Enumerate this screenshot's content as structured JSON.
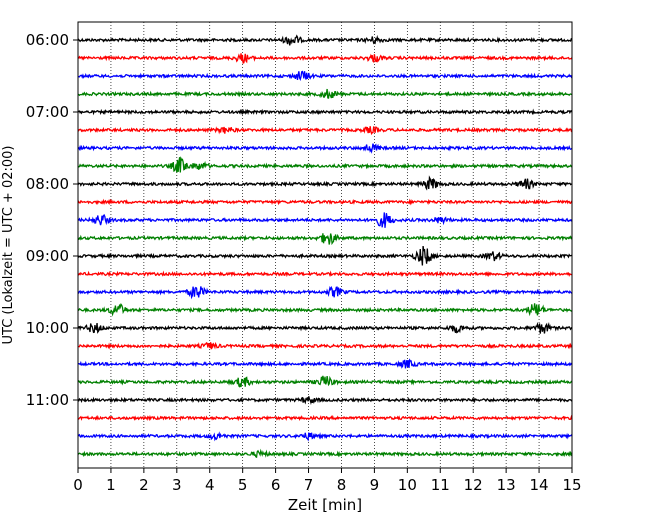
{
  "chart_data": {
    "type": "line",
    "title": "",
    "xlabel": "Zeit  [min]",
    "ylabel": "UTC (Lokalzeit = UTC + 02:00)",
    "xlim": [
      0,
      15
    ],
    "xticks": [
      "0",
      "1",
      "2",
      "3",
      "4",
      "5",
      "6",
      "7",
      "8",
      "9",
      "10",
      "11",
      "12",
      "13",
      "14",
      "15"
    ],
    "yticks": [
      "06:00",
      "07:00",
      "08:00",
      "09:00",
      "10:00",
      "11:00"
    ],
    "trace_start": "06:00",
    "trace_interval_min": 15,
    "grid": {
      "x": true,
      "style": "dotted"
    },
    "colors": [
      "#000000",
      "#ff0000",
      "#0000ff",
      "#008000"
    ],
    "traces": [
      {
        "start": "06:00",
        "events": [
          {
            "t": 6.5,
            "amp": 0.55
          },
          {
            "t": 9.0,
            "amp": 0.3
          }
        ]
      },
      {
        "start": "06:15",
        "events": [
          {
            "t": 5.0,
            "amp": 0.45
          },
          {
            "t": 9.0,
            "amp": 0.35
          }
        ]
      },
      {
        "start": "06:30",
        "events": [
          {
            "t": 6.8,
            "amp": 0.5
          }
        ]
      },
      {
        "start": "06:45",
        "events": [
          {
            "t": 7.6,
            "amp": 0.45
          }
        ]
      },
      {
        "start": "07:00",
        "events": []
      },
      {
        "start": "07:15",
        "events": [
          {
            "t": 4.5,
            "amp": 0.3
          },
          {
            "t": 8.9,
            "amp": 0.3
          }
        ]
      },
      {
        "start": "07:30",
        "events": [
          {
            "t": 8.9,
            "amp": 0.4
          }
        ]
      },
      {
        "start": "07:45",
        "events": [
          {
            "t": 3.1,
            "amp": 0.85
          },
          {
            "t": 3.7,
            "amp": 0.35
          }
        ]
      },
      {
        "start": "08:00",
        "events": [
          {
            "t": 10.7,
            "amp": 0.6
          },
          {
            "t": 13.6,
            "amp": 0.5
          }
        ]
      },
      {
        "start": "08:15",
        "events": []
      },
      {
        "start": "08:30",
        "events": [
          {
            "t": 0.7,
            "amp": 0.55
          },
          {
            "t": 9.3,
            "amp": 0.8
          },
          {
            "t": 11.0,
            "amp": 0.3
          }
        ]
      },
      {
        "start": "08:45",
        "events": [
          {
            "t": 7.6,
            "amp": 0.7
          }
        ]
      },
      {
        "start": "09:00",
        "events": [
          {
            "t": 10.5,
            "amp": 1.0
          },
          {
            "t": 12.6,
            "amp": 0.45
          }
        ]
      },
      {
        "start": "09:15",
        "events": []
      },
      {
        "start": "09:30",
        "events": [
          {
            "t": 3.6,
            "amp": 0.7
          },
          {
            "t": 7.8,
            "amp": 0.5
          }
        ]
      },
      {
        "start": "09:45",
        "events": [
          {
            "t": 1.2,
            "amp": 0.65
          },
          {
            "t": 13.9,
            "amp": 0.7
          }
        ]
      },
      {
        "start": "10:00",
        "events": [
          {
            "t": 0.5,
            "amp": 0.5
          },
          {
            "t": 11.5,
            "amp": 0.4
          },
          {
            "t": 14.1,
            "amp": 0.55
          }
        ]
      },
      {
        "start": "10:15",
        "events": [
          {
            "t": 4.0,
            "amp": 0.3
          }
        ]
      },
      {
        "start": "10:30",
        "events": [
          {
            "t": 10.0,
            "amp": 0.4
          }
        ]
      },
      {
        "start": "10:45",
        "events": [
          {
            "t": 5.0,
            "amp": 0.5
          },
          {
            "t": 7.5,
            "amp": 0.6
          }
        ]
      },
      {
        "start": "11:00",
        "events": [
          {
            "t": 7.0,
            "amp": 0.3
          }
        ]
      },
      {
        "start": "11:15",
        "events": []
      },
      {
        "start": "11:30",
        "events": [
          {
            "t": 4.2,
            "amp": 0.3
          },
          {
            "t": 7.0,
            "amp": 0.3
          }
        ]
      },
      {
        "start": "11:45",
        "events": [
          {
            "t": 5.5,
            "amp": 0.25
          }
        ]
      }
    ]
  }
}
